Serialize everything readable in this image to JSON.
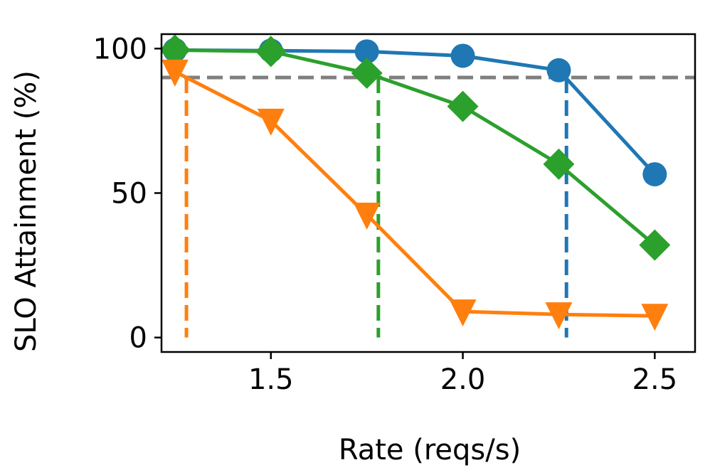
{
  "chart_data": {
    "type": "line",
    "title": "",
    "xlabel": "Rate (reqs/s)",
    "ylabel": "SLO Attainment (%)",
    "xlim": [
      1.215,
      2.605
    ],
    "ylim": [
      -5,
      105
    ],
    "x_ticks": [
      {
        "value": 1.5,
        "label": "1.5"
      },
      {
        "value": 2.0,
        "label": "2.0"
      },
      {
        "value": 2.5,
        "label": "2.5"
      }
    ],
    "y_ticks": [
      {
        "value": 0,
        "label": "0"
      },
      {
        "value": 50,
        "label": "50"
      },
      {
        "value": 100,
        "label": "100"
      }
    ],
    "threshold": {
      "value": 90,
      "color": "#7f7f7f"
    },
    "series": [
      {
        "name": "blue",
        "color": "#1f77b4",
        "marker": "circle",
        "x": [
          1.25,
          1.5,
          1.75,
          2.0,
          2.25,
          2.5
        ],
        "y": [
          99.5,
          99.3,
          99,
          97.5,
          92.5,
          56.5
        ],
        "crossing_x": 2.27
      },
      {
        "name": "green",
        "color": "#2ca02c",
        "marker": "diamond",
        "x": [
          1.25,
          1.5,
          1.75,
          2.0,
          2.25,
          2.5
        ],
        "y": [
          99.5,
          99,
          91.5,
          80,
          60,
          32
        ],
        "crossing_x": 1.78
      },
      {
        "name": "orange",
        "color": "#ff7f0e",
        "marker": "triangle-down",
        "x": [
          1.25,
          1.5,
          1.75,
          2.0,
          2.25,
          2.5
        ],
        "y": [
          92,
          75,
          42.5,
          9,
          8,
          7.5
        ],
        "crossing_x": 1.28
      }
    ],
    "legend": "none",
    "grid": false
  }
}
